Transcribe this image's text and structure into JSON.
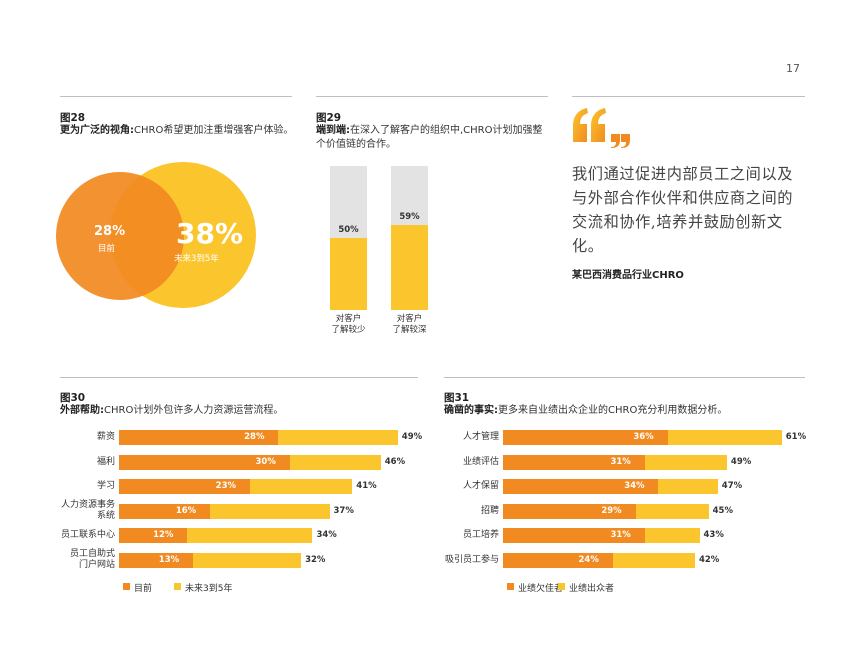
{
  "page_number": "17",
  "colors": {
    "orange": "#F18A21",
    "yellow": "#FBC52D",
    "track": "#E3E3E3",
    "rule": "#BFBFBF"
  },
  "quote": {
    "mark_icon": "quote-icon",
    "text": "我们通过促进内部员工之间以及与外部合作伙伴和供应商之间的交流和协作,培养并鼓励创新文化。",
    "attribution": "某巴西消费品行业CHRO"
  },
  "chart_data": [
    {
      "id": "fig28",
      "type": "venn",
      "label": "图28",
      "title_bold": "更为广泛的视角:",
      "title_rest": "CHRO希望更加注重增强客户体验。",
      "sets": [
        {
          "name": "目前",
          "value": 28,
          "value_text": "28%"
        },
        {
          "name": "未来3到5年",
          "value": 38,
          "value_text": "38%"
        }
      ]
    },
    {
      "id": "fig29",
      "type": "bar",
      "label": "图29",
      "title_bold": "端到端:",
      "title_rest": "在深入了解客户的组织中,CHRO计划加强整个价值链的合作。",
      "ylim": [
        0,
        100
      ],
      "categories": [
        {
          "line1": "对客户",
          "line2": "了解较少"
        },
        {
          "line1": "对客户",
          "line2": "了解较深"
        }
      ],
      "values": [
        50,
        59
      ],
      "value_texts": [
        "50%",
        "59%"
      ]
    },
    {
      "id": "fig30",
      "type": "bar",
      "orientation": "horizontal",
      "label": "图30",
      "title_bold": "外部帮助:",
      "title_rest": "CHRO计划外包许多人力资源运营流程。",
      "categories": [
        {
          "line1": "薪资",
          "line2": ""
        },
        {
          "line1": "福利",
          "line2": ""
        },
        {
          "line1": "学习",
          "line2": ""
        },
        {
          "line1": "人力资源事务",
          "line2": "系统"
        },
        {
          "line1": "员工联系中心",
          "line2": ""
        },
        {
          "line1": "员工自助式",
          "line2": "门户网站"
        }
      ],
      "series": [
        {
          "name": "目前",
          "values": [
            28,
            30,
            23,
            16,
            12,
            13
          ],
          "texts": [
            "28%",
            "30%",
            "23%",
            "16%",
            "12%",
            "13%"
          ]
        },
        {
          "name": "未来3到5年",
          "values": [
            49,
            46,
            41,
            37,
            34,
            32
          ],
          "texts": [
            "49%",
            "46%",
            "41%",
            "37%",
            "34%",
            "32%"
          ]
        }
      ]
    },
    {
      "id": "fig31",
      "type": "bar",
      "orientation": "horizontal",
      "label": "图31",
      "title_bold": "确凿的事实:",
      "title_rest": "更多来自业绩出众企业的CHRO充分利用数据分析。",
      "categories": [
        {
          "line1": "人才管理",
          "line2": ""
        },
        {
          "line1": "业绩评估",
          "line2": ""
        },
        {
          "line1": "人才保留",
          "line2": ""
        },
        {
          "line1": "招聘",
          "line2": ""
        },
        {
          "line1": "员工培养",
          "line2": ""
        },
        {
          "line1": "吸引员工参与",
          "line2": ""
        }
      ],
      "series": [
        {
          "name": "业绩欠佳者",
          "values": [
            36,
            31,
            34,
            29,
            31,
            24
          ],
          "texts": [
            "36%",
            "31%",
            "34%",
            "29%",
            "31%",
            "24%"
          ]
        },
        {
          "name": "业绩出众者",
          "values": [
            61,
            49,
            47,
            45,
            43,
            42
          ],
          "texts": [
            "61%",
            "49%",
            "47%",
            "45%",
            "43%",
            "42%"
          ]
        }
      ]
    }
  ]
}
